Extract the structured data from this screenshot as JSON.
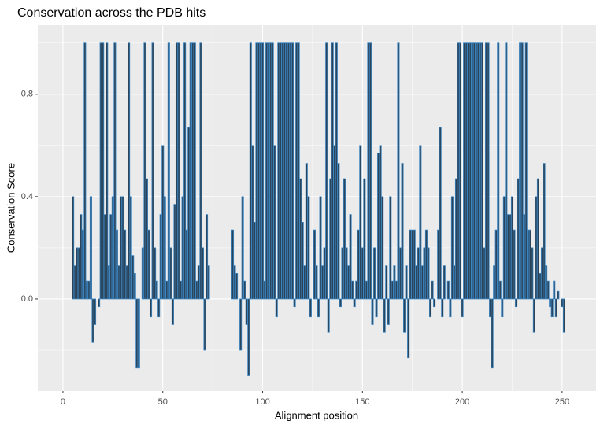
{
  "chart_data": {
    "type": "bar",
    "title": "Conservation across the PDB hits",
    "x_label": "Alignment position",
    "y_label": "Conservation Score",
    "fill": "#2b4459",
    "outline": "#3a84c1",
    "xlim": [
      -12.6,
      267
    ],
    "ylim": [
      -0.36,
      1.07
    ],
    "xticks": [
      0,
      50,
      100,
      150,
      200,
      250
    ],
    "minor_xticks": [
      25,
      75,
      125,
      175,
      225
    ],
    "yticks": [
      {
        "value": 0,
        "label": "0.0"
      },
      0.4,
      0.8
    ],
    "minor_yticks": [
      -0.2,
      0.2,
      0.6,
      1.0
    ],
    "grid": true,
    "x": [
      1,
      2,
      3,
      4,
      5,
      6,
      7,
      8,
      9,
      10,
      11,
      12,
      13,
      14,
      15,
      16,
      17,
      18,
      19,
      20,
      21,
      22,
      23,
      24,
      25,
      26,
      27,
      28,
      29,
      30,
      31,
      32,
      33,
      34,
      35,
      36,
      37,
      38,
      39,
      40,
      41,
      42,
      43,
      44,
      45,
      46,
      47,
      48,
      49,
      50,
      51,
      52,
      53,
      54,
      55,
      56,
      57,
      58,
      59,
      60,
      61,
      62,
      63,
      64,
      65,
      66,
      67,
      68,
      69,
      70,
      71,
      72,
      73,
      74,
      75,
      76,
      77,
      78,
      79,
      80,
      81,
      82,
      83,
      84,
      85,
      86,
      87,
      88,
      89,
      90,
      91,
      92,
      93,
      94,
      95,
      96,
      97,
      98,
      99,
      100,
      101,
      102,
      103,
      104,
      105,
      106,
      107,
      108,
      109,
      110,
      111,
      112,
      113,
      114,
      115,
      116,
      117,
      118,
      119,
      120,
      121,
      122,
      123,
      124,
      125,
      126,
      127,
      128,
      129,
      130,
      131,
      132,
      133,
      134,
      135,
      136,
      137,
      138,
      139,
      140,
      141,
      142,
      143,
      144,
      145,
      146,
      147,
      148,
      149,
      150,
      151,
      152,
      153,
      154,
      155,
      156,
      157,
      158,
      159,
      160,
      161,
      162,
      163,
      164,
      165,
      166,
      167,
      168,
      169,
      170,
      171,
      172,
      173,
      174,
      175,
      176,
      177,
      178,
      179,
      180,
      181,
      182,
      183,
      184,
      185,
      186,
      187,
      188,
      189,
      190,
      191,
      192,
      193,
      194,
      195,
      196,
      197,
      198,
      199,
      200,
      201,
      202,
      203,
      204,
      205,
      206,
      207,
      208,
      209,
      210,
      211,
      212,
      213,
      214,
      215,
      216,
      217,
      218,
      219,
      220,
      221,
      222,
      223,
      224,
      225,
      226,
      227,
      228,
      229,
      230,
      231,
      232,
      233,
      234,
      235,
      236,
      237,
      238,
      239,
      240,
      241,
      242,
      243,
      244,
      245,
      246,
      247,
      248,
      249,
      250,
      251
    ],
    "values": [
      0,
      0,
      0,
      0,
      0.4,
      0.13,
      0.2,
      0.2,
      0.33,
      0.27,
      1,
      0.07,
      0.07,
      0.4,
      -0.17,
      -0.1,
      0,
      -0.03,
      1,
      1,
      0.33,
      1,
      0.13,
      0.33,
      0.4,
      1,
      0.27,
      0.13,
      0.4,
      0.4,
      0.27,
      0.13,
      1,
      0.4,
      0.17,
      0.1,
      -0.27,
      -0.27,
      0,
      0.2,
      1,
      0.47,
      0.27,
      -0.07,
      1,
      0.2,
      0.07,
      -0.07,
      0.33,
      0.6,
      0.4,
      0.07,
      1,
      0.2,
      -0.1,
      0.37,
      1,
      1,
      0.07,
      0.4,
      1,
      0.27,
      0.67,
      1,
      1,
      1,
      0.07,
      0.13,
      1,
      0.2,
      -0.2,
      0.33,
      0.13,
      0,
      0,
      0,
      0,
      0,
      0,
      0,
      0,
      0,
      0,
      0,
      0.27,
      0.13,
      0.1,
      0,
      -0.2,
      0.4,
      0.07,
      -0.1,
      -0.3,
      1,
      0.6,
      0.3,
      1,
      1,
      1,
      1,
      0.07,
      1,
      1,
      1,
      1,
      0.6,
      -0.07,
      1,
      1,
      1,
      1,
      1,
      1,
      1,
      1,
      -0.03,
      1,
      1,
      0.47,
      0.3,
      0.13,
      0.53,
      0.4,
      -0.07,
      0,
      0.27,
      0.13,
      -0.07,
      0.4,
      0.13,
      0.2,
      1,
      -0.13,
      0.47,
      1,
      0.6,
      1,
      0.53,
      -0.03,
      0.2,
      0.47,
      0.2,
      0.13,
      0.33,
      0.07,
      -0.03,
      0.07,
      0.27,
      0.6,
      0.2,
      0.47,
      0.07,
      1,
      1,
      -0.1,
      0.2,
      -0.07,
      0.57,
      0.6,
      0.4,
      -0.13,
      0.13,
      -0.1,
      0.4,
      0.07,
      0.13,
      0.07,
      1,
      0.2,
      0.53,
      -0.13,
      0.13,
      -0.23,
      0.27,
      0.27,
      0.27,
      0.13,
      0.2,
      0.6,
      0.13,
      0.2,
      0.27,
      0.2,
      -0.07,
      0.07,
      -0.03,
      0,
      0.27,
      0.67,
      -0.07,
      0.13,
      0,
      0.07,
      -0.07,
      0.4,
      0.13,
      0.47,
      1,
      1,
      -0.07,
      1,
      1,
      1,
      1,
      1,
      1,
      1,
      1,
      1,
      1,
      0.2,
      1,
      1,
      -0.07,
      -0.27,
      0.13,
      0.27,
      1,
      0.07,
      -0.07,
      0.4,
      1,
      0.33,
      0.33,
      0.4,
      0.27,
      -0.03,
      0.47,
      1,
      1,
      0.33,
      1,
      0.27,
      0.27,
      0.2,
      -0.13,
      0.4,
      0.47,
      0.1,
      0.2,
      0.53,
      0.13,
      0.07,
      -0.03,
      -0.07,
      0.07,
      -0.07,
      0.03,
      0,
      -0.03,
      -0.13
    ]
  }
}
